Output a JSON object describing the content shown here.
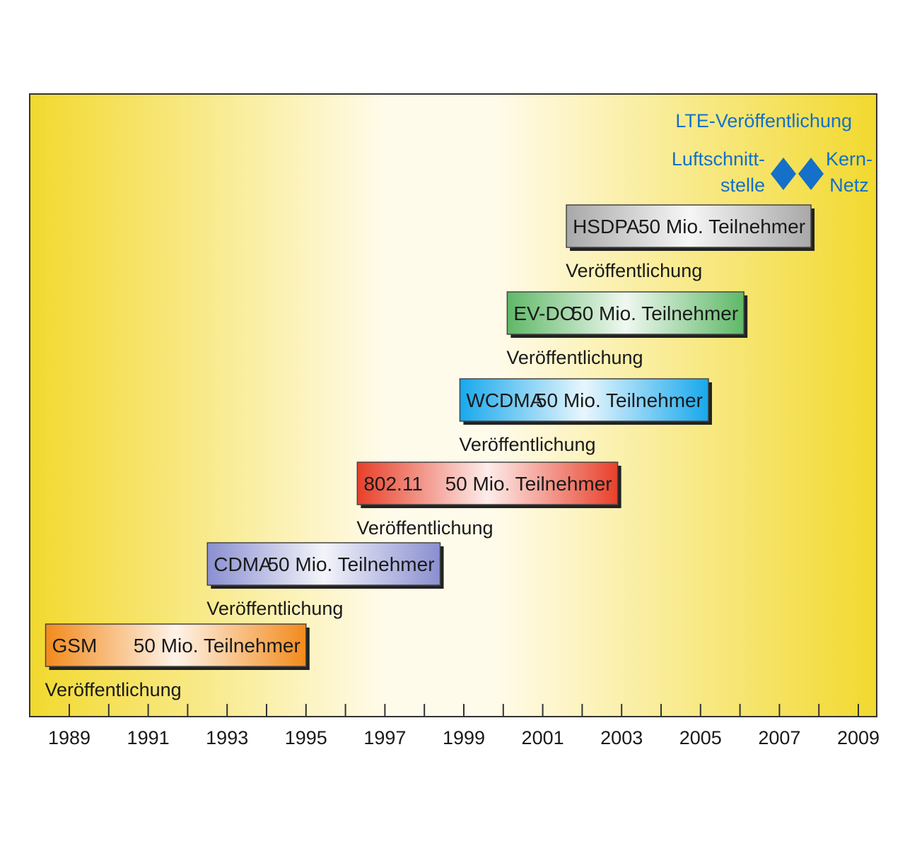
{
  "chart_data": {
    "type": "timeline",
    "xlim": [
      1988,
      2010.3
    ],
    "x_ticks": [
      1989,
      1990,
      1991,
      1992,
      1993,
      1994,
      1995,
      1996,
      1997,
      1998,
      1999,
      2000,
      2001,
      2002,
      2003,
      2004,
      2005,
      2006,
      2007,
      2008,
      2009
    ],
    "x_tick_labels": [
      "1989",
      "1991",
      "1993",
      "1995",
      "1997",
      "1999",
      "2001",
      "2003",
      "2005",
      "2007",
      "2009"
    ],
    "release_label": "Veröffentlichung",
    "bars": [
      {
        "name": "GSM",
        "subscribers": "50 Mio. Teilnehmer",
        "start": 1988.4,
        "end": 1995,
        "color": "#f28a1c"
      },
      {
        "name": "CDMA",
        "subscribers": "50 Mio. Teilnehmer",
        "start": 1992.5,
        "end": 1998.4,
        "color": "#8a8fd0"
      },
      {
        "name": "802.11",
        "subscribers": "50 Mio. Teilnehmer",
        "start": 1996.3,
        "end": 2002.9,
        "color": "#e8402a"
      },
      {
        "name": "WCDMA",
        "subscribers": "50 Mio. Teilnehmer",
        "start": 1998.9,
        "end": 2005.2,
        "color": "#18a8ec"
      },
      {
        "name": "EV-DO",
        "subscribers": "50 Mio. Teilnehmer",
        "start": 2000.1,
        "end": 2006.1,
        "color": "#5fb867"
      },
      {
        "name": "HSDPA",
        "subscribers": "50 Mio. Teilnehmer",
        "start": 2001.6,
        "end": 2007.8,
        "color": "#a8a8a8"
      }
    ],
    "lte": {
      "title": "LTE-Veröffentlichung",
      "markers": [
        {
          "label_lines": [
            "Luftschnitt-",
            "stelle"
          ],
          "x": 2007.1
        },
        {
          "label_lines": [
            "Kern-",
            "Netz"
          ],
          "x": 2007.8
        }
      ],
      "color": "#1470c8"
    },
    "colors": {
      "background_edge": "#f2d92e",
      "background_center": "#fffbea",
      "frame": "#333333"
    }
  }
}
